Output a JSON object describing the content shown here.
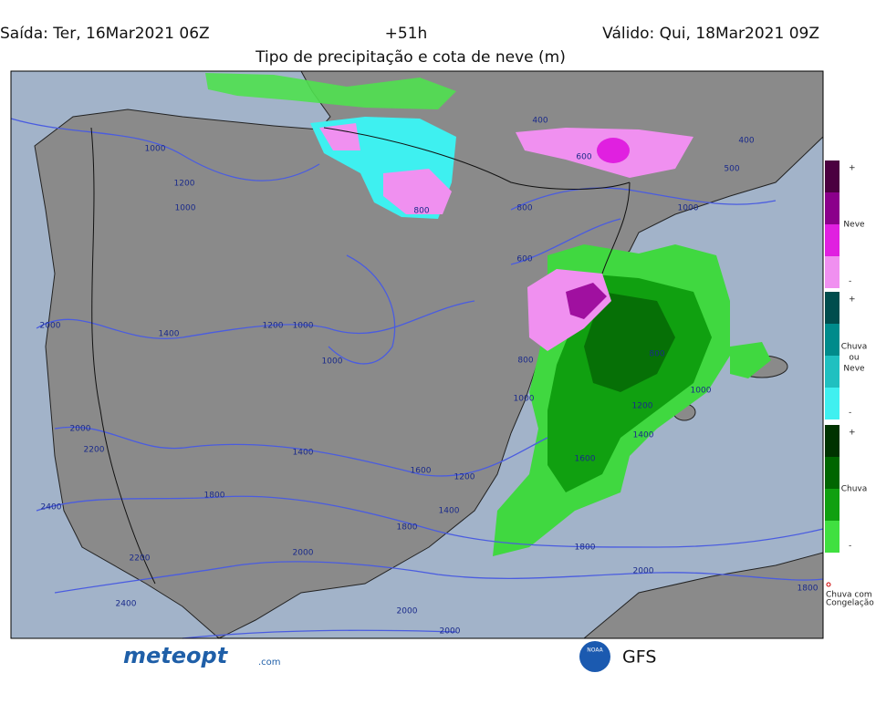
{
  "header": {
    "issued": "Saída: Ter, 16Mar2021 06Z",
    "lead": "+51h",
    "valid": "Válido: Qui, 18Mar2021 09Z",
    "title": "Tipo de precipitação e cota de neve (m)"
  },
  "legend": {
    "groups": [
      {
        "label": "Neve",
        "plus": "+",
        "minus": "-"
      },
      {
        "label": [
          "Chuva",
          "ou",
          "Neve"
        ],
        "plus": "+",
        "minus": "-"
      },
      {
        "label": "Chuva",
        "plus": "+",
        "minus": "-"
      }
    ],
    "freezing": [
      "Chuva com",
      "Congelação"
    ]
  },
  "contour_labels": [
    "1000",
    "1200",
    "1000",
    "800",
    "400",
    "600",
    "400",
    "500",
    "800",
    "1000",
    "600",
    "2000",
    "1400",
    "1200",
    "1000",
    "1000",
    "800",
    "800",
    "1000",
    "1000",
    "1200",
    "1400",
    "2000",
    "2200",
    "1400",
    "1600",
    "1200",
    "1600",
    "1800",
    "1400",
    "1800",
    "2400",
    "2000",
    "1800",
    "2200",
    "2000",
    "2400",
    "2000",
    "2000",
    "1800"
  ],
  "footer": {
    "brand": "meteopt",
    "brand_suffix": ".com",
    "agency": "NOAA",
    "model": "GFS"
  }
}
